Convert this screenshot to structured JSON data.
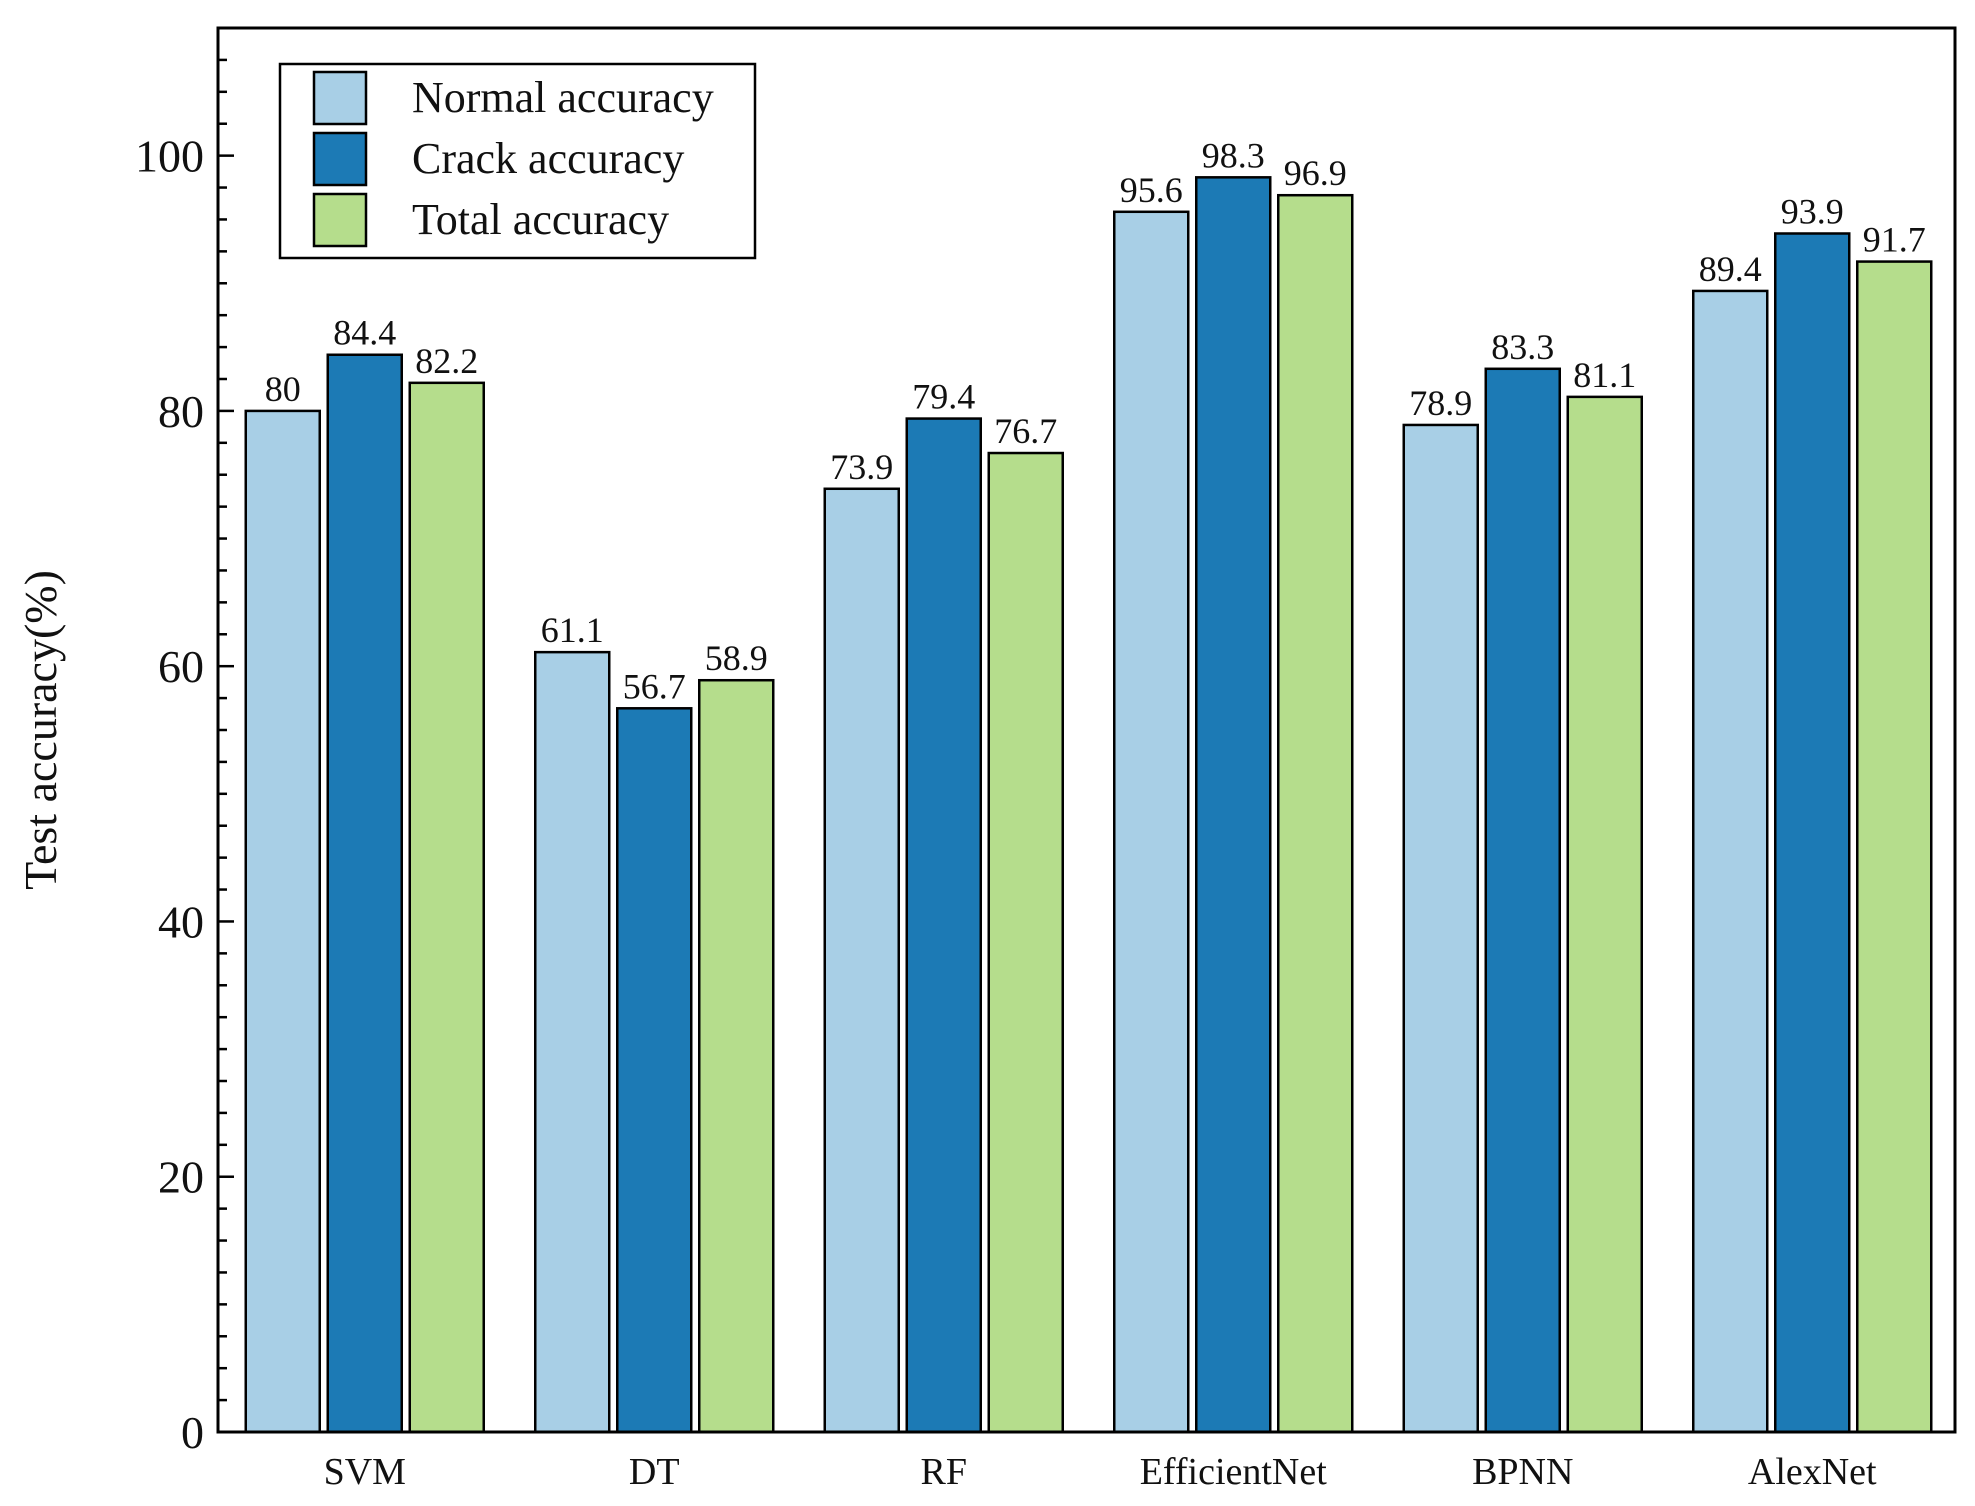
{
  "chart_data": {
    "type": "bar",
    "title": "",
    "xlabel": "",
    "ylabel": "Test accuracy(%)",
    "ylim": [
      0,
      110
    ],
    "yticks": [
      0,
      20,
      40,
      60,
      80,
      100
    ],
    "grid": false,
    "legend_position": "top-left",
    "categories": [
      "SVM",
      "DT",
      "RF",
      "EfficientNet",
      "BPNN",
      "AlexNet"
    ],
    "series": [
      {
        "name": "Normal accuracy",
        "color": "#a8cfe6",
        "values": [
          80,
          61.1,
          73.9,
          95.6,
          78.9,
          89.4
        ],
        "labels": [
          "80",
          "61.1",
          "73.9",
          "95.6",
          "78.9",
          "89.4"
        ]
      },
      {
        "name": "Crack accuracy",
        "color": "#1c7ab5",
        "values": [
          84.4,
          56.7,
          79.4,
          98.3,
          83.3,
          93.9
        ],
        "labels": [
          "84.4",
          "56.7",
          "79.4",
          "98.3",
          "83.3",
          "93.9"
        ]
      },
      {
        "name": "Total accuracy",
        "color": "#b5dd8c",
        "values": [
          82.2,
          58.9,
          76.7,
          96.9,
          81.1,
          91.7
        ],
        "labels": [
          "82.2",
          "58.9",
          "76.7",
          "96.9",
          "81.1",
          "91.7"
        ]
      }
    ]
  }
}
